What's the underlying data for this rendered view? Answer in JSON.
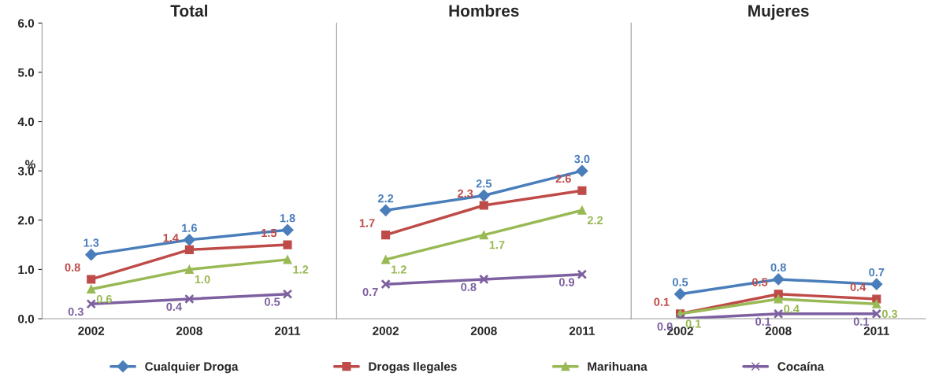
{
  "chart_data": [
    {
      "type": "line",
      "title": "Total",
      "ylabel": "%",
      "categories": [
        "2002",
        "2008",
        "2011"
      ],
      "ylim": [
        0,
        6
      ],
      "yticks": [
        "0.0",
        "1.0",
        "2.0",
        "3.0",
        "4.0",
        "5.0",
        "6.0"
      ],
      "data_labels": true,
      "legend": "bottom",
      "grid": false,
      "series": [
        {
          "name": "Cualquier Droga",
          "color": "#4a7ebb",
          "marker": "diamond",
          "values": [
            1.3,
            1.6,
            1.8
          ]
        },
        {
          "name": "Drogas Ilegales",
          "color": "#be4b48",
          "marker": "square",
          "values": [
            0.8,
            1.4,
            1.5
          ]
        },
        {
          "name": "Marihuana",
          "color": "#98b954",
          "marker": "triangle",
          "values": [
            0.6,
            1.0,
            1.2
          ],
          "value_labels": [
            "0.6",
            "1.0",
            "1.2"
          ]
        },
        {
          "name": "Cocaína",
          "color": "#7d60a0",
          "marker": "cross",
          "values": [
            0.3,
            0.4,
            0.5
          ]
        }
      ]
    },
    {
      "type": "line",
      "title": "Hombres",
      "categories": [
        "2002",
        "2008",
        "2011"
      ],
      "ylim": [
        0,
        6
      ],
      "tick_labels": "x",
      "grid": false,
      "series": [
        {
          "color": "#4a7ebb",
          "marker": "diamond",
          "values": [
            2.2,
            2.5,
            3.0
          ],
          "value_labels": [
            "2.2",
            "2.5",
            "3.0"
          ]
        },
        {
          "color": "#be4b48",
          "marker": "square",
          "values": [
            1.7,
            2.3,
            2.6
          ],
          "value_labels": [
            "1.7",
            "2.3",
            "2.6"
          ]
        },
        {
          "color": "#98b954",
          "marker": "triangle",
          "values": [
            1.2,
            1.7,
            2.2
          ],
          "value_labels": [
            "1.2",
            "1.7",
            "2.2"
          ]
        },
        {
          "color": "#7d60a0",
          "marker": "cross",
          "values": [
            0.7,
            0.8,
            0.9
          ],
          "value_labels": [
            "0.7",
            "0.8",
            "0.9"
          ]
        }
      ]
    },
    {
      "type": "line",
      "title": "Mujeres",
      "categories": [
        "2002",
        "2008",
        "2011"
      ],
      "ylim": [
        0,
        6
      ],
      "tick_labels": "x",
      "data_labels": true,
      "grid": false,
      "series": [
        {
          "color": "#4a7ebb",
          "marker": "diamond",
          "values": [
            0.5,
            0.8,
            0.7
          ]
        },
        {
          "color": "#be4b48",
          "marker": "square",
          "values": [
            0.1,
            0.5,
            0.4
          ]
        },
        {
          "color": "#98b954",
          "marker": "triangle",
          "values": [
            0.1,
            0.4,
            0.3
          ]
        },
        {
          "color": "#7d60a0",
          "marker": "cross",
          "values": [
            0.0,
            0.1,
            0.1
          ],
          "value_labels": [
            "0.0",
            "0.1",
            "0.1"
          ]
        }
      ]
    }
  ]
}
